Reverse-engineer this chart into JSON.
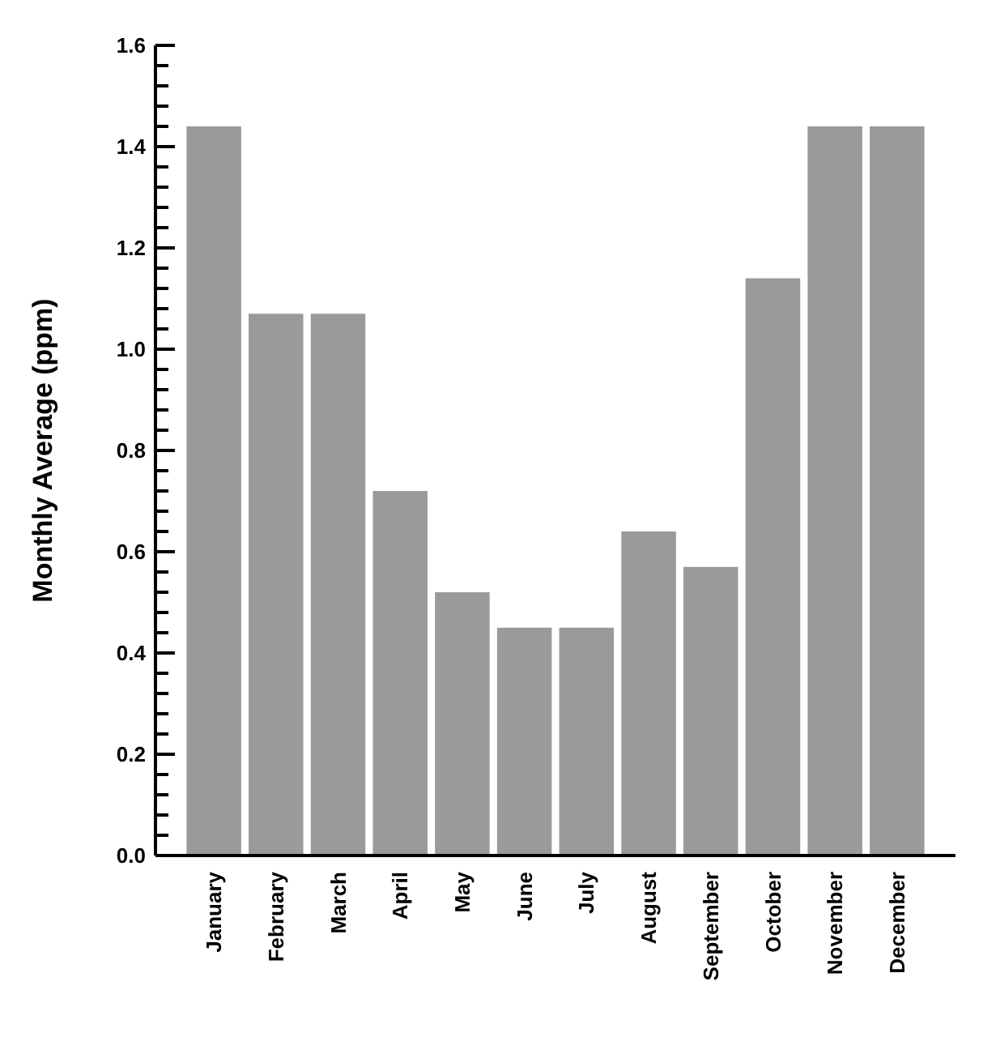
{
  "chart_data": {
    "type": "bar",
    "ylabel": "Monthly Average (ppm)",
    "categories": [
      "January",
      "February",
      "March",
      "April",
      "May",
      "June",
      "July",
      "August",
      "September",
      "October",
      "November",
      "December"
    ],
    "values": [
      1.44,
      1.07,
      1.07,
      0.72,
      0.52,
      0.45,
      0.45,
      0.64,
      0.57,
      1.14,
      1.44,
      1.44
    ],
    "color": "#9a9a9a",
    "ylim": [
      0,
      1.6
    ],
    "yticks": [
      {
        "value": 0,
        "label": "0.0"
      },
      {
        "value": 0.04,
        "label": null
      },
      {
        "value": 0.08,
        "label": null
      },
      {
        "value": 0.12,
        "label": null
      },
      {
        "value": 0.16,
        "label": null
      },
      0.2,
      {
        "value": 0.24,
        "label": null
      },
      {
        "value": 0.28,
        "label": null
      },
      {
        "value": 0.32,
        "label": null
      },
      {
        "value": 0.36,
        "label": null
      },
      0.4,
      {
        "value": 0.44,
        "label": null
      },
      {
        "value": 0.48,
        "label": null
      },
      {
        "value": 0.52,
        "label": null
      },
      {
        "value": 0.56,
        "label": null
      },
      0.6,
      {
        "value": 0.64,
        "label": null
      },
      {
        "value": 0.68,
        "label": null
      },
      {
        "value": 0.72,
        "label": null
      },
      {
        "value": 0.76,
        "label": null
      },
      0.8,
      {
        "value": 0.84,
        "label": null
      },
      {
        "value": 0.88,
        "label": null
      },
      {
        "value": 0.92,
        "label": null
      },
      {
        "value": 0.96,
        "label": null
      },
      {
        "value": 1,
        "label": "1.0"
      },
      {
        "value": 1.04,
        "label": null
      },
      {
        "value": 1.08,
        "label": null
      },
      {
        "value": 1.12,
        "label": null
      },
      {
        "value": 1.16,
        "label": null
      },
      1.2,
      {
        "value": 1.24,
        "label": null
      },
      {
        "value": 1.28,
        "label": null
      },
      {
        "value": 1.32,
        "label": null
      },
      {
        "value": 1.36,
        "label": null
      },
      1.4,
      {
        "value": 1.44,
        "label": null
      },
      {
        "value": 1.48,
        "label": null
      },
      {
        "value": 1.52,
        "label": null
      },
      {
        "value": 1.56,
        "label": null
      },
      1.6
    ],
    "grid": false
  }
}
